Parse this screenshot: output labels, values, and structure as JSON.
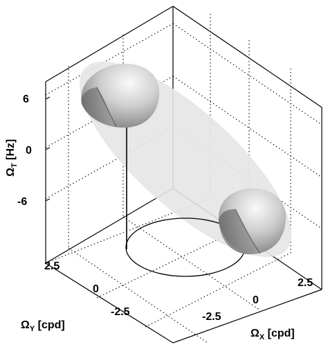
{
  "figure": {
    "z_axis": {
      "label_symbol": "Ω",
      "label_subscript": "T",
      "label_unit": "[Hz]",
      "ticks": [
        "6",
        "0",
        "-6"
      ]
    },
    "y_axis": {
      "label_symbol": "Ω",
      "label_subscript": "Y",
      "label_unit": "[cpd]",
      "ticks": [
        "2.5",
        "0",
        "-2.5"
      ]
    },
    "x_axis": {
      "label_symbol": "Ω",
      "label_subscript": "X",
      "label_unit": "[cpd]",
      "ticks": [
        "2.5",
        "0",
        "-2.5"
      ]
    },
    "colors": {
      "plane": "#e6e6e6",
      "blob_light": "#f4f4f4",
      "blob_dark": "#6f6f6f",
      "grid": "#000000"
    }
  }
}
